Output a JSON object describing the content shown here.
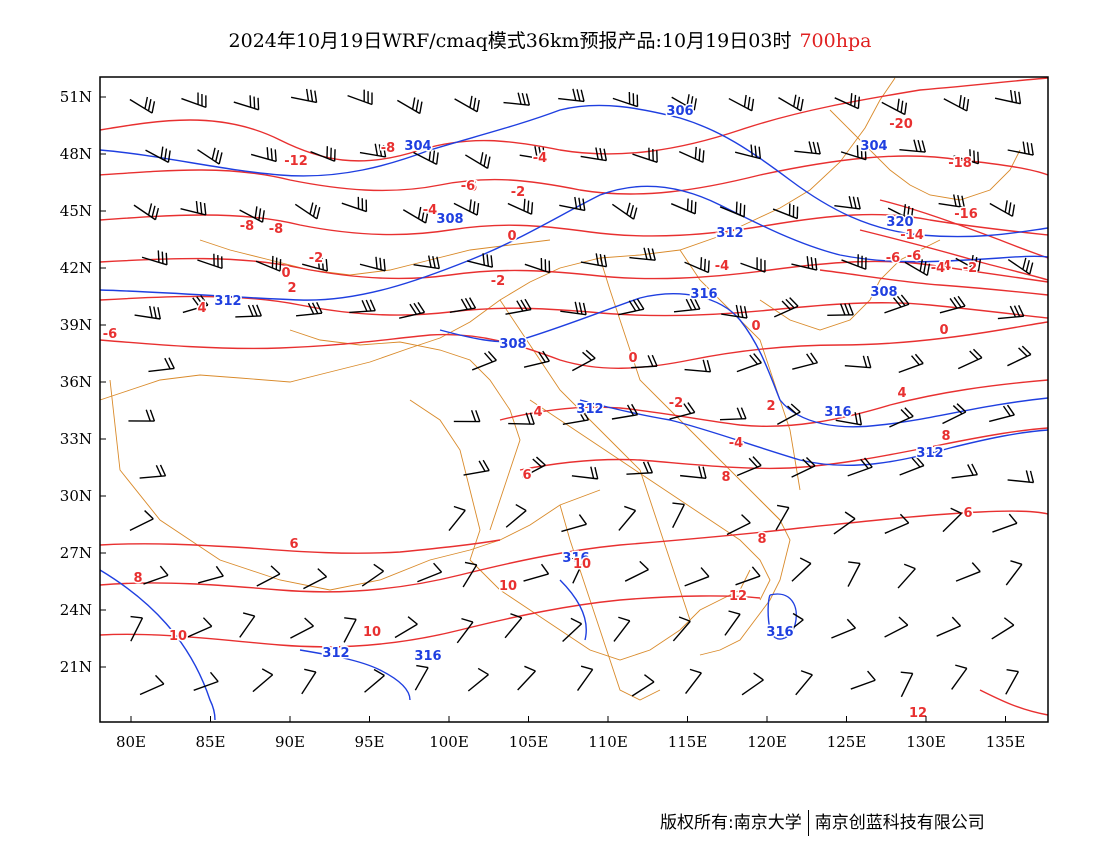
{
  "title": {
    "main": "2024年10月19日WRF/cmaq模式36km预报产品:10月19日03时",
    "level": "700hpa"
  },
  "axes": {
    "lat_labels": [
      "51N",
      "48N",
      "45N",
      "42N",
      "39N",
      "36N",
      "33N",
      "30N",
      "27N",
      "24N",
      "21N"
    ],
    "lon_labels": [
      "80E",
      "85E",
      "90E",
      "95E",
      "100E",
      "105E",
      "110E",
      "115E",
      "120E",
      "125E",
      "130E",
      "135E"
    ]
  },
  "colors": {
    "temperature_contour": "#e83030",
    "height_contour": "#1f3fe0",
    "boundary": "#d98a2a",
    "wind_barb": "#000000"
  },
  "height_labels": [
    "306",
    "304",
    "308",
    "312",
    "316",
    "312",
    "308",
    "312",
    "316",
    "312",
    "316",
    "312",
    "316",
    "316",
    "320",
    "308",
    "304"
  ],
  "temperature_labels": [
    "-12",
    "-8",
    "-8",
    "-8",
    "-6",
    "-4",
    "-4",
    "-2",
    "0",
    "-2",
    "0",
    "-2",
    "-4",
    "-6",
    "-6",
    "-4",
    "0",
    "0",
    "-2",
    "-4",
    "-20",
    "-18",
    "-16",
    "-14",
    "-6",
    "-4",
    "-2",
    "0",
    "4",
    "2",
    "2",
    "4",
    "4",
    "6",
    "6",
    "8",
    "8",
    "10",
    "10",
    "10",
    "10",
    "6",
    "8",
    "8",
    "12",
    "12",
    "-6"
  ],
  "footer": {
    "left": "版权所有:南京大学",
    "right": "南京创蓝科技有限公司"
  }
}
